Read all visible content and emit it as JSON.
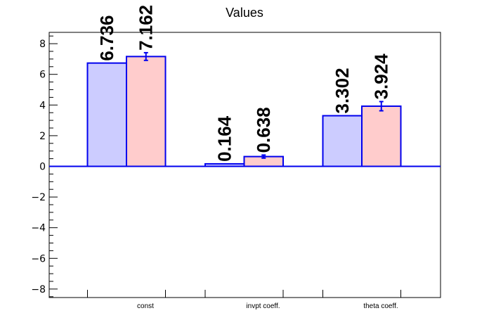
{
  "chart_data": {
    "type": "bar",
    "title": "Values",
    "categories": [
      "const",
      "invpt coeff.",
      "theta coeff."
    ],
    "series": [
      {
        "values": [
          6.736,
          0.164,
          3.302
        ],
        "errors": [
          0,
          0,
          0
        ],
        "labels": [
          "6.736",
          "0.164",
          "3.302"
        ]
      },
      {
        "values": [
          7.162,
          0.638,
          3.924
        ],
        "errors": [
          0.25,
          0.1,
          0.3
        ],
        "labels": [
          "7.162",
          "0.638",
          "3.924"
        ]
      }
    ],
    "yticks": [
      "8",
      "6",
      "4",
      "2",
      "0",
      "−2",
      "−4",
      "−6",
      "−8"
    ],
    "ylim": [
      -8.6,
      8.6
    ],
    "grid": false,
    "colors": {
      "series1_fill": "#ccccff",
      "series2_fill": "#ffcccc",
      "bar_outline": "#0000ee",
      "axis": "#000000"
    }
  }
}
